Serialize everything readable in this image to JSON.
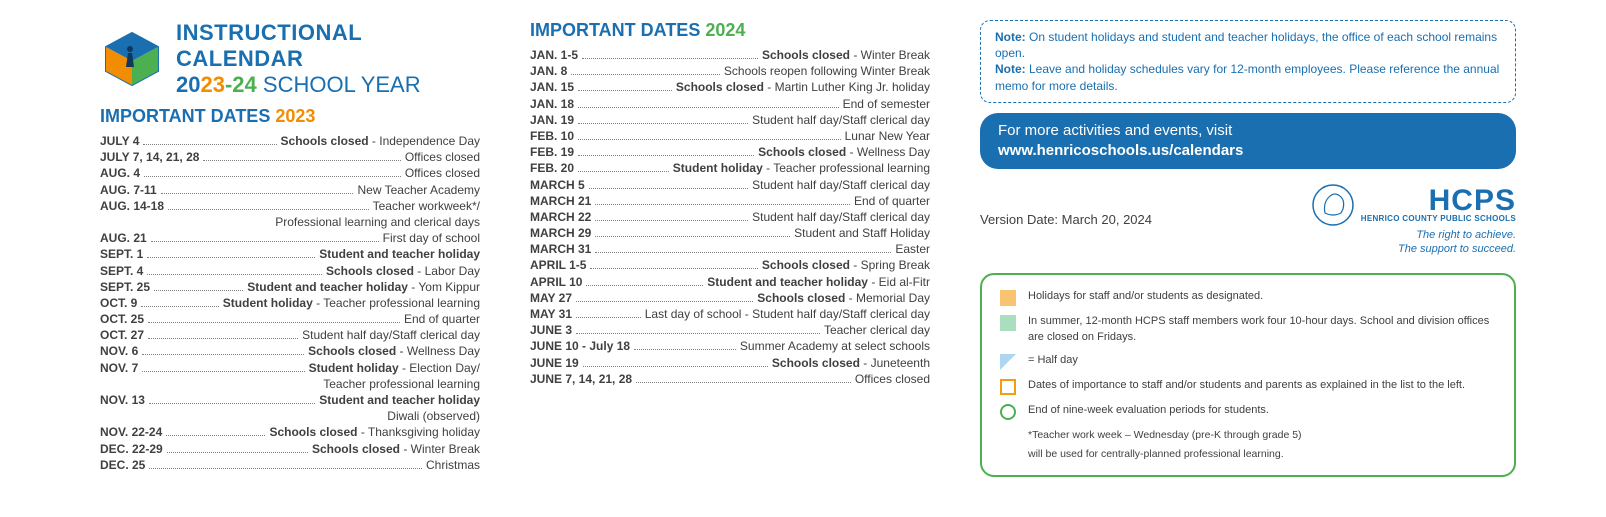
{
  "header": {
    "title": "INSTRUCTIONAL CALENDAR",
    "year_a": "23",
    "year_sep": "-",
    "year_b": "24",
    "sub_suffix": " SCHOOL YEAR"
  },
  "section2023": {
    "title": "IMPORTANT DATES ",
    "year": "2023",
    "entries": [
      {
        "date": "JULY 4",
        "desc": "Schools closed - Independence Day",
        "bold_prefix": "Schools closed"
      },
      {
        "date": "JULY 7, 14, 21, 28",
        "desc": "Offices closed"
      },
      {
        "date": "AUG. 4",
        "desc": "Offices closed"
      },
      {
        "date": "AUG. 7-11",
        "desc": "New Teacher Academy"
      },
      {
        "date": "AUG. 14-18",
        "desc": "Teacher workweek*/",
        "cont": "Professional learning and clerical days"
      },
      {
        "date": "AUG. 21",
        "desc": "First day of school"
      },
      {
        "date": "SEPT. 1",
        "desc": "Student and teacher holiday",
        "bold": true
      },
      {
        "date": "SEPT. 4",
        "desc": "Schools closed - Labor Day",
        "bold_prefix": "Schools closed"
      },
      {
        "date": "SEPT. 25",
        "desc": "Student and teacher holiday - Yom Kippur",
        "bold_prefix": "Student and teacher holiday"
      },
      {
        "date": "OCT. 9",
        "desc": "Student holiday - Teacher professional learning",
        "bold_prefix": "Student holiday"
      },
      {
        "date": "OCT. 25",
        "desc": "End of quarter"
      },
      {
        "date": "OCT. 27",
        "desc": "Student half day/Staff clerical day"
      },
      {
        "date": "NOV. 6",
        "desc": "Schools closed - Wellness Day",
        "bold_prefix": "Schools closed"
      },
      {
        "date": "NOV. 7",
        "desc": "Student holiday - Election Day/",
        "bold_prefix": "Student holiday",
        "cont": "Teacher professional learning"
      },
      {
        "date": "NOV. 13",
        "desc": "Student and teacher holiday",
        "bold": true,
        "cont": "Diwali (observed)"
      },
      {
        "date": "NOV. 22-24",
        "desc": "Schools closed - Thanksgiving holiday",
        "bold_prefix": "Schools closed"
      },
      {
        "date": "DEC. 22-29",
        "desc": "Schools closed - Winter Break",
        "bold_prefix": "Schools closed"
      },
      {
        "date": "DEC. 25",
        "desc": "Christmas"
      }
    ]
  },
  "section2024": {
    "title": "IMPORTANT DATES ",
    "year": "2024",
    "entries": [
      {
        "date": "JAN. 1-5",
        "desc": "Schools closed - Winter Break",
        "bold_prefix": "Schools closed"
      },
      {
        "date": "JAN. 8",
        "desc": "Schools reopen following Winter Break"
      },
      {
        "date": "JAN. 15",
        "desc": "Schools closed - Martin Luther King Jr. holiday",
        "bold_prefix": "Schools closed"
      },
      {
        "date": "JAN. 18",
        "desc": "End of semester"
      },
      {
        "date": "JAN. 19",
        "desc": "Student half day/Staff clerical day"
      },
      {
        "date": "FEB. 10",
        "desc": "Lunar New Year"
      },
      {
        "date": "FEB. 19",
        "desc": "Schools closed - Wellness Day",
        "bold_prefix": "Schools closed"
      },
      {
        "date": "FEB. 20",
        "desc": "Student holiday - Teacher professional learning",
        "bold_prefix": "Student holiday"
      },
      {
        "date": "MARCH 5",
        "desc": "Student half day/Staff clerical day"
      },
      {
        "date": "MARCH 21",
        "desc": "End of quarter"
      },
      {
        "date": "MARCH 22",
        "desc": "Student half day/Staff clerical day"
      },
      {
        "date": "MARCH 29",
        "desc": "Student and Staff Holiday"
      },
      {
        "date": "MARCH 31",
        "desc": "Easter"
      },
      {
        "date": "APRIL 1-5",
        "desc": "Schools closed - Spring Break",
        "bold_prefix": "Schools closed"
      },
      {
        "date": "APRIL 10",
        "desc": "Student and teacher holiday - Eid al-Fitr",
        "bold_prefix": "Student and teacher holiday"
      },
      {
        "date": "MAY 27",
        "desc": "Schools closed - Memorial Day",
        "bold_prefix": "Schools closed"
      },
      {
        "date": "MAY 31",
        "desc": "Last day of school - Student half day/Staff clerical day"
      },
      {
        "date": "JUNE 3",
        "desc": "Teacher clerical day"
      },
      {
        "date": "JUNE 10 - July 18",
        "desc": "Summer Academy at select schools"
      },
      {
        "date": "JUNE 19",
        "desc": "Schools closed - Juneteenth",
        "bold_prefix": "Schools closed"
      },
      {
        "date": "JUNE 7, 14, 21, 28",
        "desc": "Offices closed"
      }
    ]
  },
  "notes": {
    "line1_b": "Note:",
    "line1": " On student holidays and student and teacher holidays, the office of each school remains open.",
    "line2_b": "Note:",
    "line2": " Leave and holiday schedules vary for 12-month employees. Please reference the annual memo for more details."
  },
  "linkbar": {
    "line1": "For more activities and events, visit",
    "line2": "www.henricoschools.us/calendars"
  },
  "version": "Version Date: March 20, 2024",
  "hcps": {
    "main": "HCPS",
    "sub": "HENRICO COUNTY PUBLIC SCHOOLS",
    "tag1": "The right to achieve.",
    "tag2": "The support to succeed."
  },
  "legend": {
    "items": [
      {
        "icon": "sq-orange",
        "text": "Holidays for staff and/or students as designated."
      },
      {
        "icon": "sq-green",
        "text": "In summer, 12-month HCPS staff members work four 10-hour days. School and division offices are closed on Fridays."
      },
      {
        "icon": "sq-tri",
        "text": "= Half day"
      },
      {
        "icon": "sq-outline-orange",
        "text": "Dates of importance to staff and/or students and parents as explained in the list to the left."
      },
      {
        "icon": "sq-circle",
        "text": "End of  nine-week evaluation periods for students."
      }
    ],
    "foot1": "*Teacher work week – Wednesday (pre-K through grade 5)",
    "foot2": "   will be used for centrally-planned professional learning."
  },
  "colors": {
    "blue": "#1a6fb0",
    "green": "#4caf50",
    "orange": "#f28c00"
  }
}
